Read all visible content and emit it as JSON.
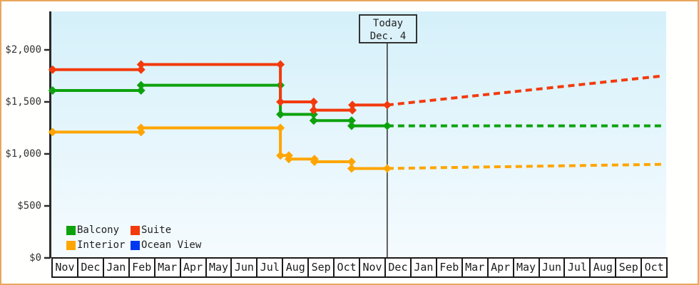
{
  "today_marker": {
    "line1": "Today",
    "line2": "Dec. 4"
  },
  "y_axis": {
    "ticks": [
      {
        "label": "$2,000",
        "value": 2000
      },
      {
        "label": "$1,500",
        "value": 1500
      },
      {
        "label": "$1,000",
        "value": 1000
      },
      {
        "label": "$500",
        "value": 500
      },
      {
        "label": "$0",
        "value": 0
      }
    ]
  },
  "x_axis": {
    "months": [
      "Nov",
      "Dec",
      "Jan",
      "Feb",
      "Mar",
      "Apr",
      "May",
      "Jun",
      "Jul",
      "Aug",
      "Sep",
      "Oct",
      "Nov",
      "Dec",
      "Jan",
      "Feb",
      "Mar",
      "Apr",
      "May",
      "Jun",
      "Jul",
      "Aug",
      "Sep",
      "Oct"
    ]
  },
  "legend": {
    "items": [
      {
        "label": "Balcony",
        "color": "#0DA20D"
      },
      {
        "label": "Suite",
        "color": "#F23A0C"
      },
      {
        "label": "Interior",
        "color": "#FFA500"
      },
      {
        "label": "Ocean View",
        "color": "#0038F0"
      }
    ]
  },
  "colors": {
    "border": "#E9A75C",
    "axis": "#2a2a2a",
    "today_line": "#3a3a3a",
    "plot_bg_top": "#D5F0FA",
    "plot_bg_bottom": "#F5FBFE"
  },
  "chart_data": {
    "type": "line",
    "title": "",
    "x_unit": "months since first Nov (0 = Nov start, 24 = Oct end)",
    "y_range": [
      0,
      2000
    ],
    "grid": false,
    "legend_position": "bottom-left inside plot",
    "today": {
      "t": 13.11,
      "date_label": "Dec. 4"
    },
    "series": [
      {
        "name": "Balcony",
        "color": "#0DA20D",
        "points": [
          [
            0.05,
            1610
          ],
          [
            3.5,
            1610
          ],
          [
            3.5,
            1660
          ],
          [
            8.94,
            1660
          ],
          [
            8.94,
            1380
          ],
          [
            10.24,
            1380
          ],
          [
            10.24,
            1320
          ],
          [
            11.72,
            1320
          ],
          [
            11.72,
            1270
          ],
          [
            13.11,
            1270
          ]
        ],
        "projection": [
          [
            13.11,
            1270
          ],
          [
            23.88,
            1270
          ]
        ]
      },
      {
        "name": "Suite",
        "color": "#F23A0C",
        "points": [
          [
            0.05,
            1810
          ],
          [
            3.5,
            1810
          ],
          [
            3.5,
            1860
          ],
          [
            8.94,
            1860
          ],
          [
            8.94,
            1500
          ],
          [
            10.24,
            1500
          ],
          [
            10.24,
            1420
          ],
          [
            11.75,
            1420
          ],
          [
            11.75,
            1470
          ],
          [
            13.11,
            1470
          ]
        ],
        "projection": [
          [
            13.11,
            1470
          ],
          [
            23.88,
            1750
          ]
        ]
      },
      {
        "name": "Interior",
        "color": "#FFA500",
        "points": [
          [
            0.05,
            1210
          ],
          [
            3.5,
            1210
          ],
          [
            3.5,
            1250
          ],
          [
            8.94,
            1250
          ],
          [
            8.94,
            985
          ],
          [
            9.27,
            985
          ],
          [
            9.27,
            950
          ],
          [
            10.27,
            950
          ],
          [
            10.27,
            925
          ],
          [
            11.72,
            925
          ],
          [
            11.72,
            860
          ],
          [
            13.11,
            860
          ]
        ],
        "projection": [
          [
            13.11,
            860
          ],
          [
            23.88,
            900
          ]
        ]
      },
      {
        "name": "Ocean View",
        "color": "#0038F0",
        "points": [],
        "projection": []
      }
    ]
  }
}
